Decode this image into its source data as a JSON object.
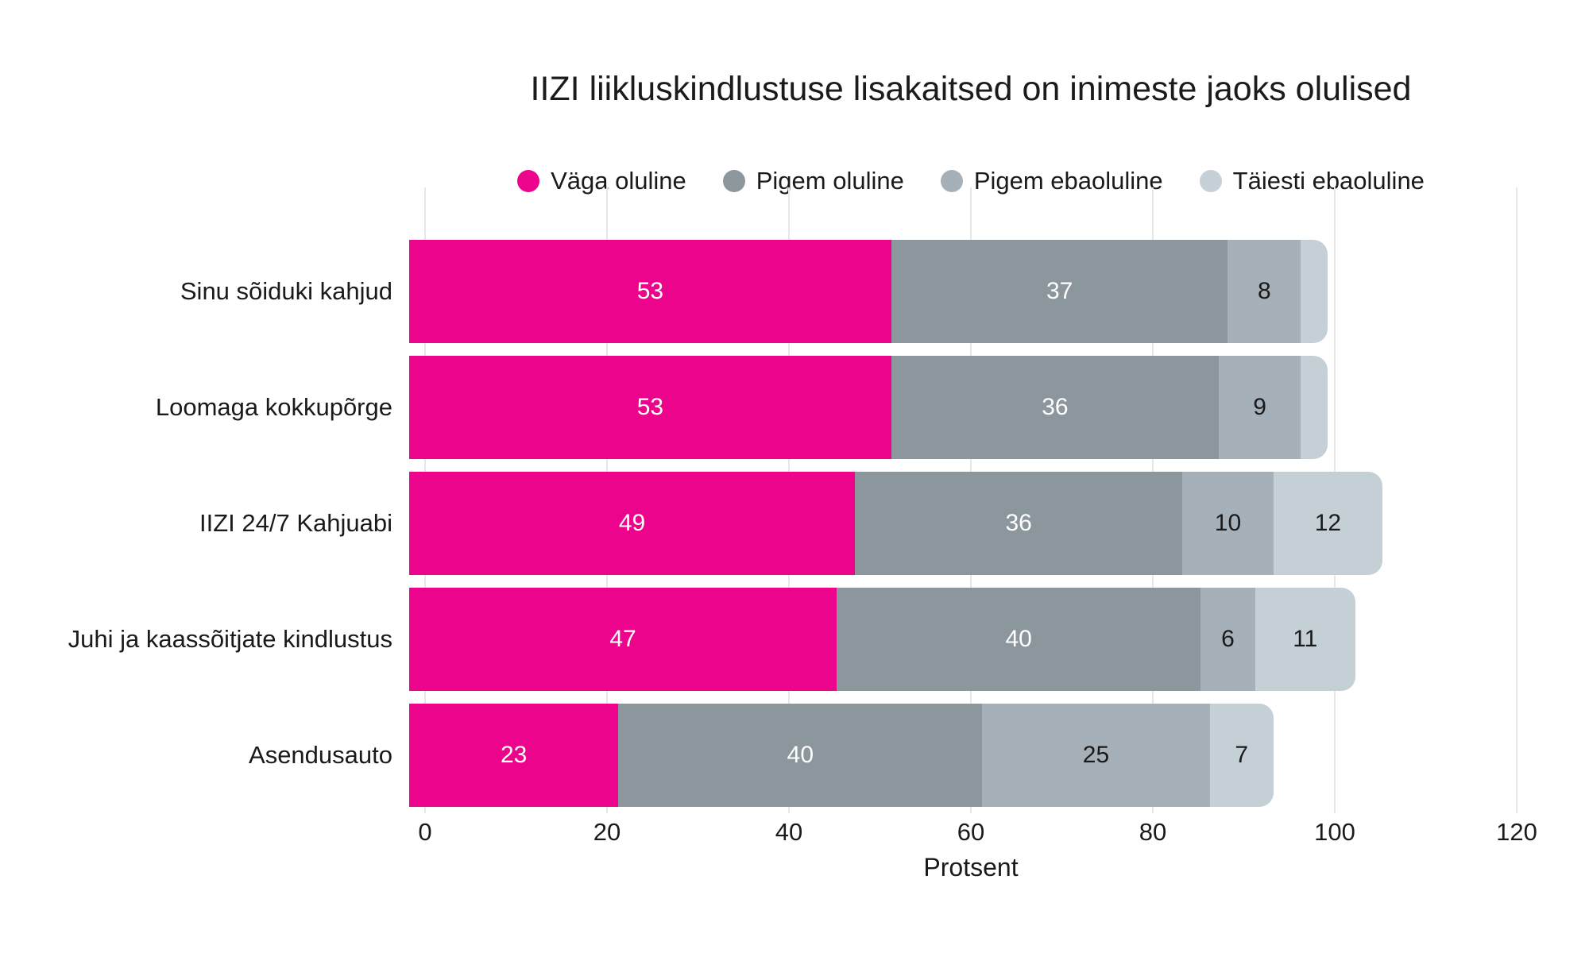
{
  "chart_data": {
    "type": "bar",
    "stacked": true,
    "orientation": "horizontal",
    "title": "IIZI liikluskindlustuse lisakaitsed on inimeste jaoks olulised",
    "xlabel": "Protsent",
    "categories": [
      "Sinu sõiduki kahjud",
      "Loomaga kokkupõrge",
      "IIZI 24/7 Kahjuabi",
      "Juhi ja kaassõitjate kindlustus",
      "Asendusauto"
    ],
    "series": [
      {
        "name": "Väga oluline",
        "color": "#EC058C",
        "label_color": "#ffffff",
        "values": [
          53,
          53,
          49,
          47,
          23
        ]
      },
      {
        "name": "Pigem oluline",
        "color": "#8C979D",
        "label_color": "#ffffff",
        "values": [
          37,
          36,
          36,
          40,
          40
        ]
      },
      {
        "name": "Pigem ebaoluline",
        "color": "#A6B0B8",
        "label_color": "#1a1a1a",
        "values": [
          8,
          9,
          10,
          6,
          25
        ]
      },
      {
        "name": "Täiesti ebaoluline",
        "color": "#C5CFD6",
        "label_color": "#1a1a1a",
        "values": [
          3,
          3,
          12,
          11,
          7
        ]
      }
    ],
    "xlim": [
      0,
      120
    ],
    "xticks": [
      0,
      20,
      40,
      60,
      80,
      100,
      120
    ],
    "label_min": 5,
    "grid": "vertical",
    "gridline_color": "#e7e7e7",
    "legend_position": "top",
    "background_color": "#ffffff"
  }
}
